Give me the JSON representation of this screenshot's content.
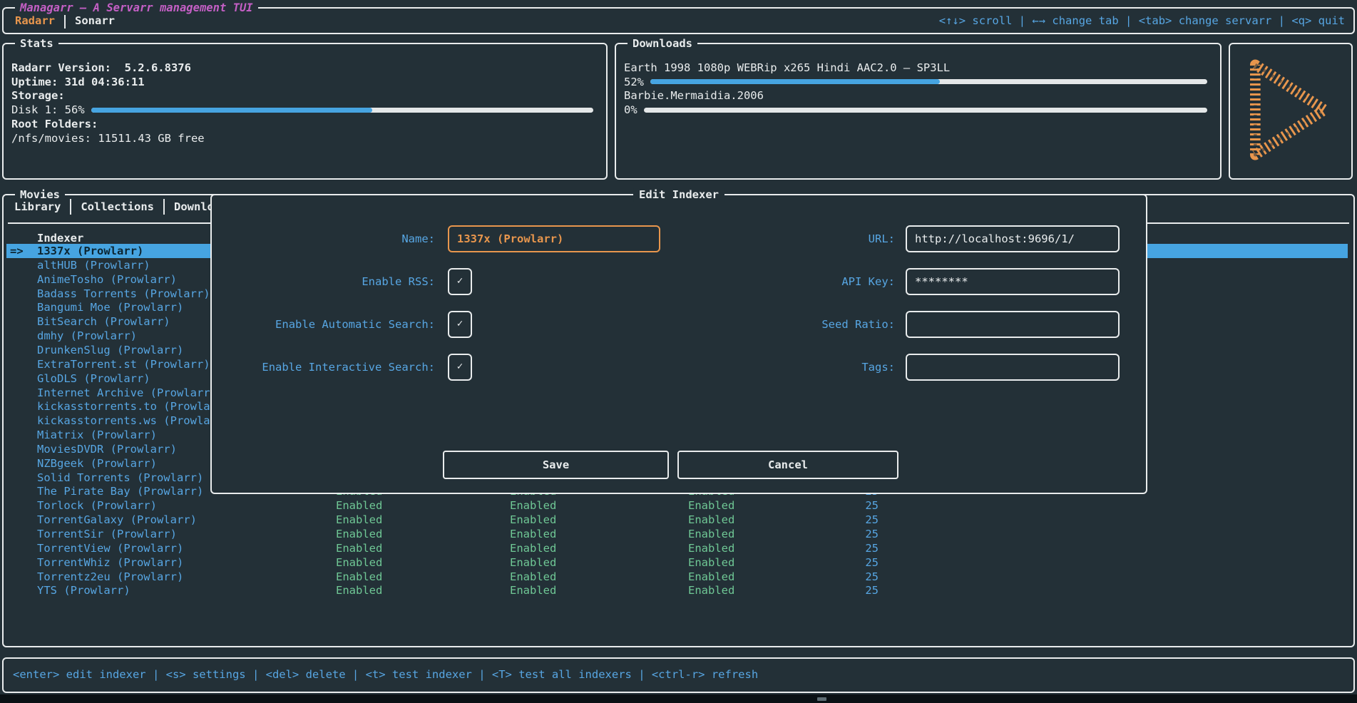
{
  "theme": {
    "background": "#233037",
    "foreground": "#e9eced",
    "blue": "#57a6e3",
    "orange": "#e8964d",
    "magenta": "#c35fc4",
    "green": "#6fc795",
    "highlight": "#46a4e1"
  },
  "header": {
    "title": "Managarr – A Servarr management TUI",
    "servarr_tabs": [
      {
        "label": "Radarr",
        "active": true
      },
      {
        "label": "Sonarr",
        "active": false
      }
    ],
    "hints": "<↑↓> scroll | ←→ change tab | <tab> change servarr | <q> quit"
  },
  "stats": {
    "title": "Stats",
    "rows": [
      {
        "text": "Radarr Version:  5.2.6.8376",
        "bold": true
      },
      {
        "text": "Uptime: 31d 04:36:11",
        "bold": true
      },
      {
        "text": "Storage:",
        "bold": true
      },
      {
        "text": "Disk 1: 56%",
        "bold": false,
        "gauge_percent": 56
      },
      {
        "text": "Root Folders:",
        "bold": true
      },
      {
        "text": "/nfs/movies: 11511.43 GB free",
        "bold": false
      }
    ]
  },
  "downloads": {
    "title": "Downloads",
    "items": [
      {
        "title": "Earth 1998 1080p WEBRip x265 Hindi AAC2.0 – SP3LL",
        "percent_label": "52%",
        "percent": 52
      },
      {
        "title": "Barbie.Mermaidia.2006",
        "percent_label": "0%",
        "percent": 0
      }
    ]
  },
  "logo": {
    "icon": "managarr-play-logo",
    "color": "#e8964d"
  },
  "movies": {
    "title": "Movies",
    "tabs": [
      "Library",
      "Collections",
      "Downloads"
    ],
    "table": {
      "header": "Indexer",
      "selected_index": 0,
      "selected_marker": "=>",
      "row_values": {
        "rss": "Enabled",
        "automatic_search": "Enabled",
        "interactive_search": "Enabled",
        "priority": "25"
      },
      "rows": [
        "1337x (Prowlarr)",
        "altHUB (Prowlarr)",
        "AnimeTosho (Prowlarr)",
        "Badass Torrents (Prowlarr)",
        "Bangumi Moe (Prowlarr)",
        "BitSearch (Prowlarr)",
        "dmhy (Prowlarr)",
        "DrunkenSlug (Prowlarr)",
        "ExtraTorrent.st (Prowlarr)",
        "GloDLS (Prowlarr)",
        "Internet Archive (Prowlarr)",
        "kickasstorrents.to (Prowlarr)",
        "kickasstorrents.ws (Prowlarr)",
        "Miatrix (Prowlarr)",
        "MoviesDVDR (Prowlarr)",
        "NZBgeek (Prowlarr)",
        "Solid Torrents (Prowlarr)",
        "The Pirate Bay (Prowlarr)",
        "Torlock (Prowlarr)",
        "TorrentGalaxy (Prowlarr)",
        "TorrentSir (Prowlarr)",
        "TorrentView (Prowlarr)",
        "TorrentWhiz (Prowlarr)",
        "Torrentz2eu (Prowlarr)",
        "YTS (Prowlarr)"
      ]
    }
  },
  "modal": {
    "title": "Edit Indexer",
    "name": {
      "label": "Name:",
      "value": "1337x (Prowlarr)"
    },
    "url": {
      "label": "URL:",
      "value": "http://localhost:9696/1/"
    },
    "enable_rss": {
      "label": "Enable RSS:",
      "checked": "✓"
    },
    "api_key": {
      "label": "API Key:",
      "value": "********"
    },
    "enable_automatic_search": {
      "label": "Enable Automatic Search:",
      "checked": "✓"
    },
    "seed_ratio": {
      "label": "Seed Ratio:",
      "value": ""
    },
    "enable_interactive_search": {
      "label": "Enable Interactive Search:",
      "checked": "✓"
    },
    "tags": {
      "label": "Tags:",
      "value": ""
    },
    "buttons": {
      "save": "Save",
      "cancel": "Cancel"
    }
  },
  "footer": {
    "hints": "<enter> edit indexer | <s> settings | <del> delete | <t> test indexer | <T> test all indexers | <ctrl-r> refresh"
  }
}
